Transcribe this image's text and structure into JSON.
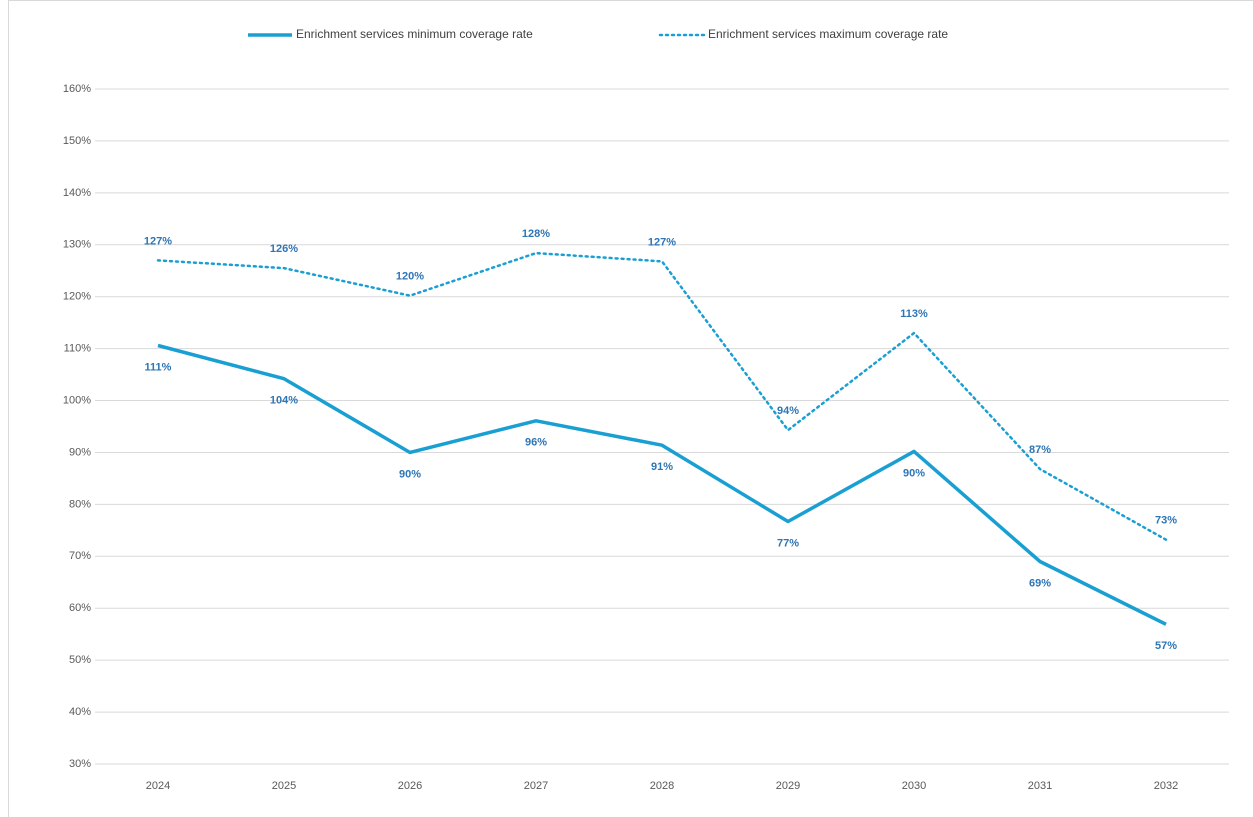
{
  "chart_data": {
    "type": "line",
    "categories": [
      "2024",
      "2025",
      "2026",
      "2027",
      "2028",
      "2029",
      "2030",
      "2031",
      "2032"
    ],
    "series": [
      {
        "name": "Enrichment services minimum coverage rate",
        "color": "#1a9fd3",
        "style": "solid",
        "values": [
          110.6,
          104.2,
          90,
          96.1,
          91.4,
          76.7,
          90.2,
          69,
          56.9
        ],
        "value_labels": [
          "111%",
          "104%",
          "90%",
          "96%",
          "91%",
          "77%",
          "90%",
          "69%",
          "57%"
        ]
      },
      {
        "name": "Enrichment services maximum coverage rate",
        "color": "#1a9fd3",
        "style": "dotted",
        "values": [
          127,
          125.5,
          120.2,
          128.4,
          126.8,
          94.3,
          113,
          86.8,
          73.2
        ],
        "value_labels": [
          "127%",
          "126%",
          "120%",
          "128%",
          "127%",
          "94%",
          "113%",
          "87%",
          "73%"
        ]
      }
    ],
    "ylim": [
      30,
      160
    ],
    "yticks": [
      {
        "value": 30,
        "label": "30%"
      },
      {
        "value": 40,
        "label": "40%"
      },
      {
        "value": 50,
        "label": "50%"
      },
      {
        "value": 60,
        "label": "60%"
      },
      {
        "value": 70,
        "label": "70%"
      },
      {
        "value": 80,
        "label": "80%"
      },
      {
        "value": 90,
        "label": "90%"
      },
      {
        "value": 100,
        "label": "100%"
      },
      {
        "value": 110,
        "label": "110%"
      },
      {
        "value": 120,
        "label": "120%"
      },
      {
        "value": 130,
        "label": "130%"
      },
      {
        "value": 140,
        "label": "140%"
      },
      {
        "value": 150,
        "label": "150%"
      },
      {
        "value": 160,
        "label": "160%"
      }
    ],
    "grid": true,
    "legend": "top"
  }
}
